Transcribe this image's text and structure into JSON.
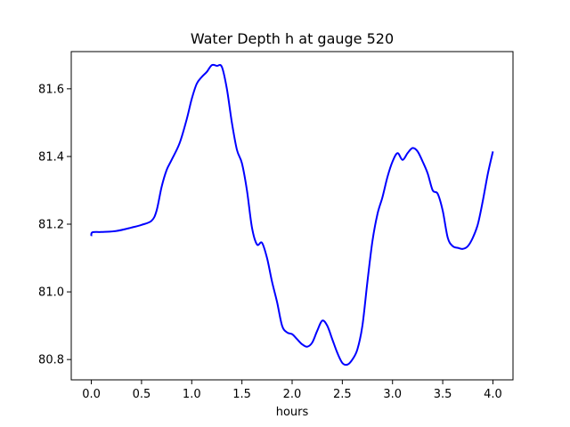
{
  "chart_data": {
    "type": "line",
    "title": "Water Depth h at gauge 520",
    "xlabel": "hours",
    "ylabel": "",
    "xlim": [
      -0.2,
      4.2
    ],
    "ylim": [
      80.74,
      81.71
    ],
    "x_ticks": [
      0.0,
      0.5,
      1.0,
      1.5,
      2.0,
      2.5,
      3.0,
      3.5,
      4.0
    ],
    "x_tick_labels": [
      "0.0",
      "0.5",
      "1.0",
      "1.5",
      "2.0",
      "2.5",
      "3.0",
      "3.5",
      "4.0"
    ],
    "y_ticks": [
      80.8,
      81.0,
      81.2,
      81.4,
      81.6
    ],
    "y_tick_labels": [
      "80.8",
      "81.0",
      "81.2",
      "81.4",
      "81.6"
    ],
    "grid": false,
    "series": [
      {
        "color": "#0000ff",
        "x": [
          0.0,
          0.01,
          0.1,
          0.25,
          0.4,
          0.5,
          0.6,
          0.65,
          0.7,
          0.75,
          0.8,
          0.88,
          0.95,
          1.0,
          1.05,
          1.1,
          1.15,
          1.2,
          1.25,
          1.3,
          1.35,
          1.4,
          1.45,
          1.5,
          1.55,
          1.6,
          1.65,
          1.7,
          1.75,
          1.8,
          1.85,
          1.9,
          1.95,
          2.0,
          2.05,
          2.1,
          2.15,
          2.2,
          2.25,
          2.3,
          2.35,
          2.4,
          2.45,
          2.5,
          2.55,
          2.6,
          2.65,
          2.7,
          2.75,
          2.8,
          2.85,
          2.9,
          2.95,
          3.0,
          3.05,
          3.1,
          3.15,
          3.2,
          3.25,
          3.3,
          3.35,
          3.4,
          3.45,
          3.5,
          3.55,
          3.6,
          3.65,
          3.7,
          3.75,
          3.8,
          3.85,
          3.9,
          3.95,
          4.0
        ],
        "y": [
          81.165,
          81.176,
          81.177,
          81.18,
          81.19,
          81.198,
          81.21,
          81.24,
          81.31,
          81.36,
          81.39,
          81.44,
          81.51,
          81.57,
          81.615,
          81.635,
          81.65,
          81.67,
          81.668,
          81.665,
          81.6,
          81.5,
          81.42,
          81.38,
          81.3,
          81.19,
          81.14,
          81.145,
          81.1,
          81.03,
          80.97,
          80.9,
          80.88,
          80.875,
          80.86,
          80.845,
          80.838,
          80.85,
          80.885,
          80.915,
          80.9,
          80.86,
          80.82,
          80.79,
          80.785,
          80.8,
          80.83,
          80.9,
          81.03,
          81.15,
          81.23,
          81.28,
          81.34,
          81.385,
          81.41,
          81.39,
          81.41,
          81.425,
          81.415,
          81.385,
          81.35,
          81.3,
          81.29,
          81.24,
          81.16,
          81.135,
          81.13,
          81.127,
          81.135,
          81.16,
          81.2,
          81.27,
          81.35,
          81.415
        ]
      }
    ]
  }
}
